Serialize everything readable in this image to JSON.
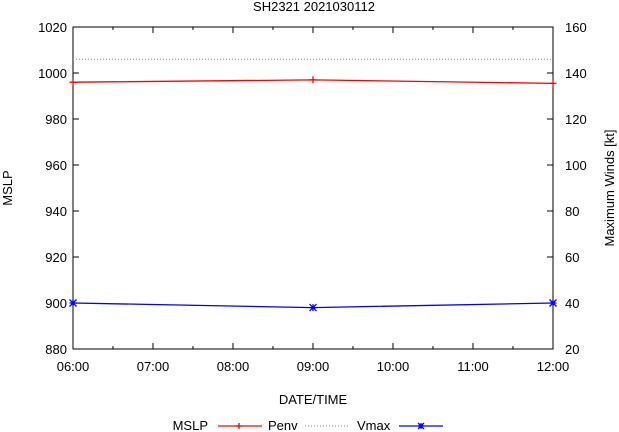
{
  "chart_data": {
    "type": "line",
    "title": "SH2321 2021030112",
    "xlabel": "DATE/TIME",
    "ylabel": "MSLP",
    "y2label": "Maximum Winds [kt]",
    "x_ticks": [
      "06:00",
      "07:00",
      "08:00",
      "09:00",
      "10:00",
      "11:00",
      "12:00"
    ],
    "x_hours": [
      6,
      7,
      8,
      9,
      10,
      11,
      12
    ],
    "xlim": [
      6,
      12
    ],
    "ylim": [
      880,
      1020
    ],
    "y_ticks": [
      880,
      900,
      920,
      940,
      960,
      980,
      1000,
      1020
    ],
    "y2lim": [
      20,
      160
    ],
    "y2_ticks": [
      20,
      40,
      60,
      80,
      100,
      120,
      140,
      160
    ],
    "legend_title": "MSLP",
    "legend_position": "bottom",
    "series": [
      {
        "name": "Penv",
        "axis": "y",
        "style": "line-points",
        "marker": "plus",
        "color": "#ff0000",
        "x": [
          6,
          9,
          12
        ],
        "values": [
          996,
          997,
          995.5
        ]
      },
      {
        "name": "",
        "axis": "y",
        "style": "dotted",
        "color": "#888888",
        "x": [
          6,
          12
        ],
        "values": [
          1006,
          1006
        ]
      },
      {
        "name": "Vmax",
        "axis": "y2",
        "style": "line-points",
        "marker": "star",
        "color": "#0000ff",
        "x": [
          6,
          9,
          12
        ],
        "values": [
          40,
          38,
          40
        ]
      }
    ]
  }
}
